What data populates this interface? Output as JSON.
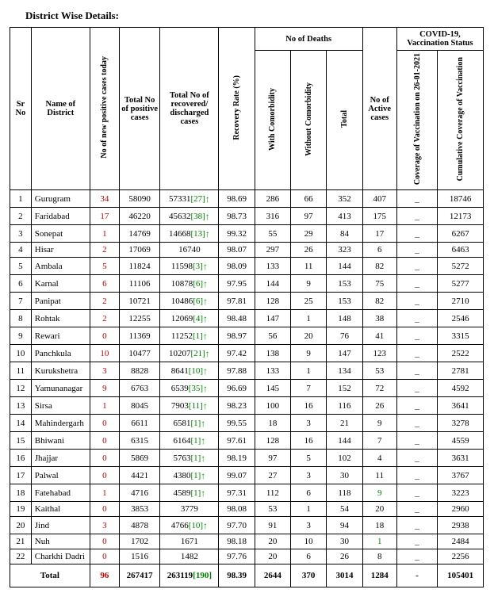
{
  "title": "District Wise Details:",
  "headers": {
    "sr": "Sr No",
    "district": "Name of District",
    "newcases": "No of new positive cases today",
    "total": "Total No of positive cases",
    "recovered": "Total No of recovered/ discharged cases",
    "rate": "Recovery Rate (%)",
    "deaths_group": "No of Deaths",
    "with": "With Comorbidity",
    "without": "Without Comorbidity",
    "dtotal": "Total",
    "active": "No of Active cases",
    "vax_group": "COVID-19, Vaccination Status",
    "vax_today": "Coverage of Vaccination on 26-01-2021",
    "vax_cum": "Cumulative Coverage of Vaccination"
  },
  "rows": [
    {
      "sr": 1,
      "d": "Gurugram",
      "new": 34,
      "tot": 58090,
      "rec": 57331,
      "recA": 27,
      "rate": "98.69",
      "wc": 286,
      "woc": 66,
      "dt": 352,
      "act": 407,
      "v1": "_",
      "v2": 18746
    },
    {
      "sr": 2,
      "d": "Faridabad",
      "new": 17,
      "tot": 46220,
      "rec": 45632,
      "recA": 38,
      "rate": "98.73",
      "wc": 316,
      "woc": 97,
      "dt": 413,
      "act": 175,
      "v1": "_",
      "v2": 12173
    },
    {
      "sr": 3,
      "d": "Sonepat",
      "new": 1,
      "tot": 14769,
      "rec": 14668,
      "recA": 13,
      "rate": "99.32",
      "wc": 55,
      "woc": 29,
      "dt": 84,
      "act": 17,
      "v1": "_",
      "v2": 6267
    },
    {
      "sr": 4,
      "d": "Hisar",
      "new": 2,
      "tot": 17069,
      "rec": 16740,
      "recA": null,
      "rate": "98.07",
      "wc": 297,
      "woc": 26,
      "dt": 323,
      "act": 6,
      "v1": "_",
      "v2": 6463
    },
    {
      "sr": 5,
      "d": "Ambala",
      "new": 5,
      "tot": 11824,
      "rec": 11598,
      "recA": 3,
      "rate": "98.09",
      "wc": 133,
      "woc": 11,
      "dt": 144,
      "act": 82,
      "v1": "_",
      "v2": 5272
    },
    {
      "sr": 6,
      "d": "Karnal",
      "new": 6,
      "tot": 11106,
      "rec": 10878,
      "recA": 6,
      "rate": "97.95",
      "wc": 144,
      "woc": 9,
      "dt": 153,
      "act": 75,
      "v1": "_",
      "v2": 5277
    },
    {
      "sr": 7,
      "d": "Panipat",
      "new": 2,
      "tot": 10721,
      "rec": 10486,
      "recA": 6,
      "rate": "97.81",
      "wc": 128,
      "woc": 25,
      "dt": 153,
      "act": 82,
      "v1": "_",
      "v2": 2710
    },
    {
      "sr": 8,
      "d": "Rohtak",
      "new": 2,
      "tot": 12255,
      "rec": 12069,
      "recA": 4,
      "rate": "98.48",
      "wc": 147,
      "woc": 1,
      "dt": 148,
      "act": 38,
      "v1": "_",
      "v2": 2546
    },
    {
      "sr": 9,
      "d": "Rewari",
      "new": 0,
      "tot": 11369,
      "rec": 11252,
      "recA": 1,
      "rate": "98.97",
      "wc": 56,
      "woc": 20,
      "dt": 76,
      "act": 41,
      "v1": "_",
      "v2": 3315
    },
    {
      "sr": 10,
      "d": "Panchkula",
      "new": 10,
      "tot": 10477,
      "rec": 10207,
      "recA": 21,
      "rate": "97.42",
      "wc": 138,
      "woc": 9,
      "dt": 147,
      "act": 123,
      "v1": "_",
      "v2": 2522
    },
    {
      "sr": 11,
      "d": "Kurukshetra",
      "new": 3,
      "tot": 8828,
      "rec": 8641,
      "recA": 10,
      "rate": "97.88",
      "wc": 133,
      "woc": 1,
      "dt": 134,
      "act": 53,
      "v1": "_",
      "v2": 2781
    },
    {
      "sr": 12,
      "d": "Yamunanagar",
      "new": 9,
      "tot": 6763,
      "rec": 6539,
      "recA": 35,
      "rate": "96.69",
      "wc": 145,
      "woc": 7,
      "dt": 152,
      "act": 72,
      "v1": "_",
      "v2": 4592
    },
    {
      "sr": 13,
      "d": "Sirsa",
      "new": 1,
      "tot": 8045,
      "rec": 7903,
      "recA": 11,
      "rate": "98.23",
      "wc": 100,
      "woc": 16,
      "dt": 116,
      "act": 26,
      "v1": "_",
      "v2": 3641
    },
    {
      "sr": 14,
      "d": "Mahindergarh",
      "new": 0,
      "tot": 6611,
      "rec": 6581,
      "recA": 1,
      "rate": "99.55",
      "wc": 18,
      "woc": 3,
      "dt": 21,
      "act": 9,
      "v1": "_",
      "v2": 3278
    },
    {
      "sr": 15,
      "d": "Bhiwani",
      "new": 0,
      "tot": 6315,
      "rec": 6164,
      "recA": 1,
      "rate": "97.61",
      "wc": 128,
      "woc": 16,
      "dt": 144,
      "act": 7,
      "v1": "_",
      "v2": 4559
    },
    {
      "sr": 16,
      "d": "Jhajjar",
      "new": 0,
      "tot": 5869,
      "rec": 5763,
      "recA": 1,
      "rate": "98.19",
      "wc": 97,
      "woc": 5,
      "dt": 102,
      "act": 4,
      "v1": "_",
      "v2": 3631
    },
    {
      "sr": 17,
      "d": "Palwal",
      "new": 0,
      "tot": 4421,
      "rec": 4380,
      "recA": 1,
      "rate": "99.07",
      "wc": 27,
      "woc": 3,
      "dt": 30,
      "act": 11,
      "v1": "_",
      "v2": 3767
    },
    {
      "sr": 18,
      "d": "Fatehabad",
      "new": 1,
      "tot": 4716,
      "rec": 4589,
      "recA": 1,
      "rate": "97.31",
      "wc": 112,
      "woc": 6,
      "dt": 118,
      "act": 9,
      "actGreen": true,
      "v1": "_",
      "v2": 3223
    },
    {
      "sr": 19,
      "d": "Kaithal",
      "new": 0,
      "tot": 3853,
      "rec": 3779,
      "recA": null,
      "rate": "98.08",
      "wc": 53,
      "woc": 1,
      "dt": 54,
      "act": 20,
      "v1": "_",
      "v2": 2960
    },
    {
      "sr": 20,
      "d": "Jind",
      "new": 3,
      "tot": 4878,
      "rec": 4766,
      "recA": 10,
      "rate": "97.70",
      "wc": 91,
      "woc": 3,
      "dt": 94,
      "act": 18,
      "v1": "_",
      "v2": 2938
    },
    {
      "sr": 21,
      "d": "Nuh",
      "new": 0,
      "tot": 1702,
      "rec": 1671,
      "recA": null,
      "rate": "98.18",
      "wc": 20,
      "woc": 10,
      "dt": 30,
      "act": 1,
      "actGreen": true,
      "v1": "_",
      "v2": 2484
    },
    {
      "sr": 22,
      "d": "Charkhi Dadri",
      "new": 0,
      "tot": 1516,
      "rec": 1482,
      "recA": null,
      "rate": "97.76",
      "wc": 20,
      "woc": 6,
      "dt": 26,
      "act": 8,
      "v1": "_",
      "v2": 2256
    }
  ],
  "total": {
    "label": "Total",
    "new": 96,
    "tot": 267417,
    "rec": 263119,
    "recA": 190,
    "rate": "98.39",
    "wc": 2644,
    "woc": 370,
    "dt": 3014,
    "act": 1284,
    "v1": "-",
    "v2": 105401
  }
}
